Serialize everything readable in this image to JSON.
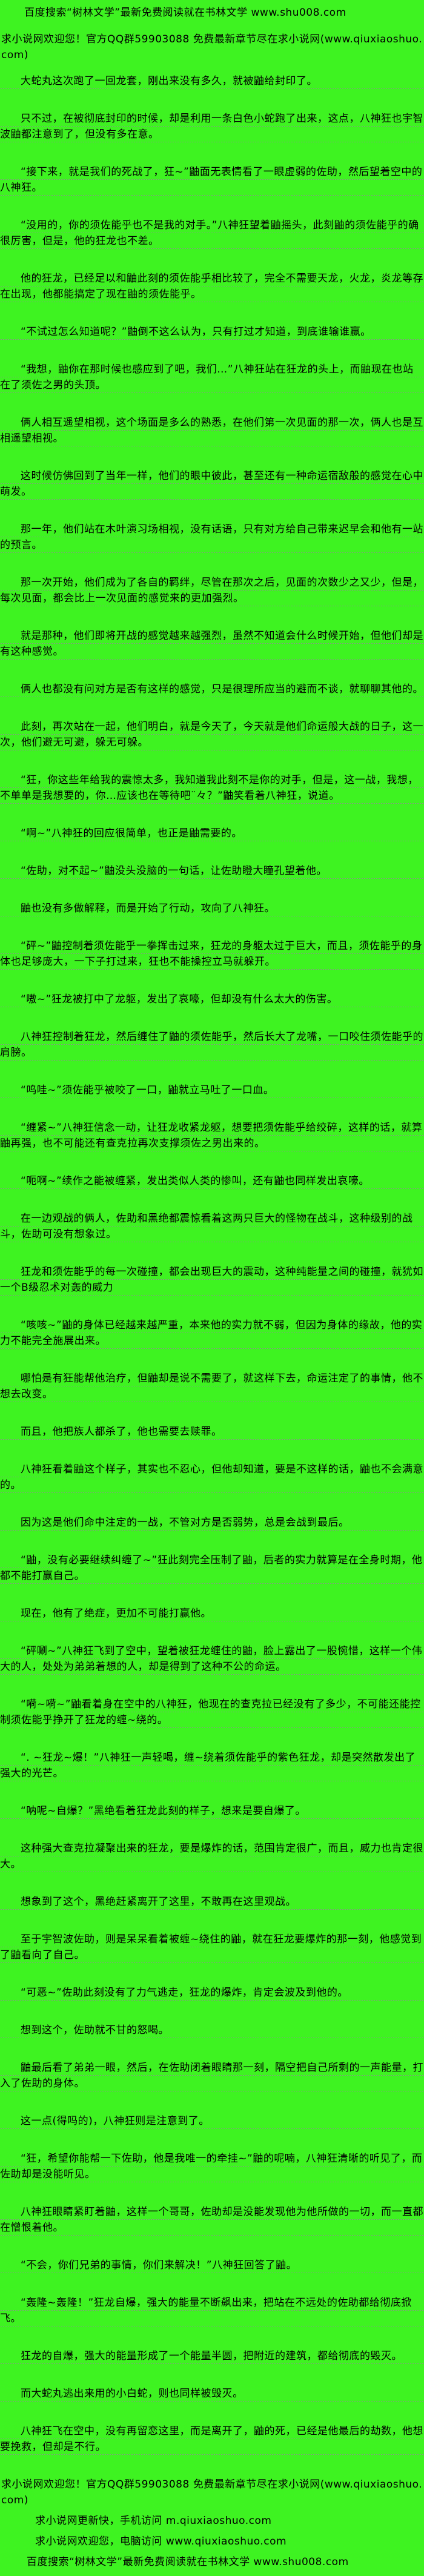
{
  "page": {
    "colors": {
      "background": "#3EF321",
      "text": "#000000",
      "dotted_underline": "#8F8F8F"
    },
    "header": {
      "line1": "百度搜索“树林文学”最新免费阅读就在书林文学 www.shu008.com",
      "line2": "求小说网欢迎您！官方QQ群59903088 免费最新章节尽在求小说网(www.qiuxiaoshuo.com)"
    },
    "content": {
      "paragraphs": [
        "大蛇丸这次跑了一回龙套，刚出来没有多久，就被鼬给封印了。",
        "只不过，在被彻底封印的时候，却是利用一条白色小蛇跑了出来，这点，八神狂也宇智波鼬都注意到了，但没有多在意。",
        "“接下来，就是我们的死战了，狂~”鼬面无表情看了一眼虚弱的佐助，然后望着空中的八神狂。",
        "“没用的，你的须佐能乎也不是我的对手。”八神狂望着鼬摇头，此刻鼬的须佐能乎的确很厉害，但是，他的狂龙也不差。",
        "他的狂龙，已经足以和鼬此刻的须佐能乎相比较了，完全不需要天龙，火龙，炎龙等存在出现，他都能搞定了现在鼬的须佐能乎。",
        "“不试过怎么知道呢？”鼬倒不这么认为，只有打过才知道，到底谁输谁赢。",
        "“我想，鼬你在那时候也感应到了吧，我们…”八神狂站在狂龙的头上，而鼬现在也站在了须佐之男的头顶。",
        "俩人相互遥望相视，这个场面是多么的熟悉，在他们第一次见面的那一次，俩人也是互相遥望相视。",
        "这时候仿佛回到了当年一样，他们的眼中彼此，甚至还有一种命运宿敌般的感觉在心中萌发。",
        "那一年，他们站在木叶演习场相视，没有话语，只有对方给自己带来迟早会和他有一站的预言。",
        "那一次开始，他们成为了各自的羁绊，尽管在那次之后，见面的次数少之又少，但是，每次见面，都会比上一次见面的感觉来的更加强烈。",
        "就是那种，他们即将开战的感觉越来越强烈，虽然不知道会什么时候开始，但他们却是有这种感觉。",
        "俩人也都没有问对方是否有这样的感觉，只是很理所应当的避而不谈，就聊聊其他的。",
        "此刻，再次站在一起，他们明白，就是今天了，今天就是他们命运般大战的日子，这一次，他们避无可避，躲无可躲。",
        "“狂，你这些年给我的震惊太多，我知道我此刻不是你的对手，但是，这一战，我想，不单单是我想要的，你…应该也在等待吧¨々？”鼬笑看着八神狂，说道。",
        "“啊~”八神狂的回应很简单，也正是鼬需要的。",
        "“佐助，对不起~”鼬没头没脑的一句话，让佐助瞪大瞳孔望着他。",
        "鼬也没有多做解释，而是开始了行动，攻向了八神狂。",
        "“砰~”鼬控制着须佐能乎一拳挥击过来，狂龙的身躯太过于巨大，而且，须佐能乎的身体也足够庞大，一下子打过来，狂也不能操控立马就躲开。",
        "“嗷~”狂龙被打中了龙躯，发出了哀嚎，但却没有什么太大的伤害。",
        "八神狂控制着狂龙，然后缠住了鼬的须佐能乎，然后长大了龙嘴，一口咬住须佐能乎的肩膀。",
        "“呜哇~”须佐能乎被咬了一口，鼬就立马吐了一口血。",
        "“缠紧~”八神狂信念一动，让狂龙收紧龙躯，想要把须佐能乎给绞碎，这样的话，就算鼬再强，也不可能还有查克拉再次支撑须佐之男出来的。",
        "“呃啊~”续作之能被缠紧，发出类似人类的惨叫，还有鼬也同样发出哀嚎。",
        "在一边观战的俩人，佐助和黑绝都震惊看着这两只巨大的怪物在战斗，这种级别的战斗，佐助可没有想象过。",
        "狂龙和须佐能乎的每一次碰撞，都会出现巨大的震动，这种纯能量之间的碰撞，就犹如一个B级忍术对轰的威力",
        "“咳咳~”鼬的身体已经越来越严重，本来他的实力就不弱，但因为身体的缘故，他的实力不能完全施展出来。",
        "哪怕是有狂能帮他治疗，但鼬却是说不需要了，就这样下去，命运注定了的事情，他不想去改变。",
        "而且，他把族人都杀了，他也需要去赎罪。",
        "八神狂看着鼬这个样子，其实也不忍心，但他却知道，要是不这样的话，鼬也不会满意的。",
        "因为这是他们命中注定的一战，不管对方是否弱势，总是会战到最后。",
        "“鼬，没有必要继续纠缠了~”狂此刻完全压制了鼬，后者的实力就算是在全身时期，他都不能打赢自己。",
        "现在，他有了绝症，更加不可能打赢他。",
        "“砰唰~”八神狂飞到了空中，望着被狂龙缠住的鼬，脸上露出了一股惋惜，这样一个伟大的人，处处为弟弟着想的人，却是得到了这种不公的命运。",
        "“嗬~嗬~”鼬看着身在空中的八神狂，他现在的查克拉已经没有了多少，不可能还能控制须佐能乎挣开了狂龙的缠~绕的。",
        "“. ~狂龙~爆！”八神狂一声轻喝，缠~绕着须佐能乎的紫色狂龙，却是突然散发出了强大的光芒。",
        "“呐呢~自爆？”黑绝看着狂龙此刻的样子，想来是要自爆了。",
        "这种强大查克拉凝聚出来的狂龙，要是爆炸的话，范围肯定很广，而且，威力也肯定很大。",
        "想象到了这个，黑绝赶紧离开了这里，不敢再在这里观战。",
        "至于宇智波佐助，则是呆呆看着被缠~绕住的鼬，就在狂龙要爆炸的那一刻，他感觉到了鼬看向了自己。",
        "“可恶~”佐助此刻没有了力气逃走，狂龙的爆炸，肯定会波及到他的。",
        "想到这个，佐助就不甘的怒喝。",
        "鼬最后看了弟弟一眼，然后，在佐助闭着眼睛那一刻，隔空把自己所剩的一声能量，打入了佐助的身体。",
        "这一点(得吗的)，八神狂则是注意到了。",
        "“狂，希望你能帮一下佐助，他是我唯一的牵挂~”鼬的呢喃，八神狂清晰的听见了，而佐助却是没能听见。",
        "八神狂眼睛紧盯着鼬，这样一个哥哥，佐助却是没能发现他为他所做的一切，而一直都在憎恨着他。",
        "“不会，你们兄弟的事情，你们来解决！”八神狂回答了鼬。",
        "“轰隆~轰隆！”狂龙自爆，强大的能量不断飙出来，把站在不远处的佐助都给彻底掀飞。",
        "狂龙的自爆，强大的能量形成了一个能量半圆，把附近的建筑，都给彻底的毁灭。",
        "而大蛇丸逃出来用的小白蛇，则也同样被毁灭。",
        "八神狂飞在空中，没有再留恋这里，而是离开了，鼬的死，已经是他最后的劫数，他想要挽救，但却是不行。"
      ]
    },
    "footer": {
      "lines": [
        "求小说网欢迎您！官方QQ群59903088 免费最新章节尽在求小说网(www.qiuxiaoshuo.com)",
        "求小说网更新快，手机访问 m.qiuxiaoshuo.com",
        "求小说网欢迎您，电脑访问 www.qiuxiaoshuo.com",
        "百度搜索“树林文学”最新免费阅读就在书林文学 www.shu008.com"
      ]
    }
  }
}
